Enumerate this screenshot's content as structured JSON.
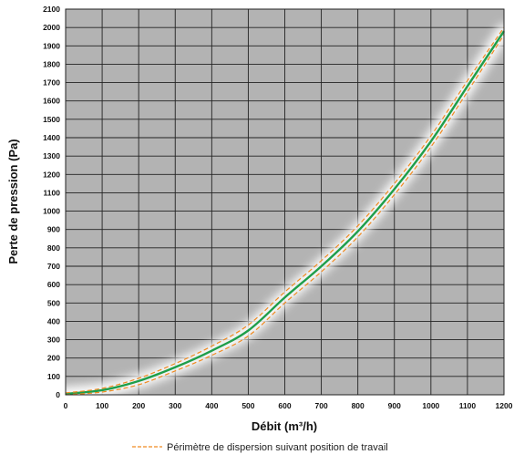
{
  "chart_data": {
    "type": "line",
    "xlabel": "Débit (m³/h)",
    "ylabel": "Perte de pression (Pa)",
    "xlim": [
      0,
      1200
    ],
    "ylim": [
      0,
      2100
    ],
    "x_ticks": [
      0,
      100,
      200,
      300,
      400,
      500,
      600,
      700,
      800,
      900,
      1000,
      1100,
      1200
    ],
    "y_ticks": [
      0,
      100,
      200,
      300,
      400,
      500,
      600,
      700,
      800,
      900,
      1000,
      1100,
      1200,
      1300,
      1400,
      1500,
      1600,
      1700,
      1800,
      1900,
      2000,
      2100
    ],
    "x_tick_labels": [
      "0",
      "100",
      "200",
      "300",
      "400",
      "500",
      "600",
      "700",
      "800",
      "900",
      "1000",
      "1100",
      "1200"
    ],
    "y_tick_labels": [
      "0",
      "100",
      "200",
      "300",
      "400",
      "500",
      "600",
      "700",
      "800",
      "900",
      "1000",
      "1100",
      "1200",
      "1300",
      "1400",
      "1500",
      "1600",
      "1700",
      "1800",
      "1900",
      "2000",
      "2100"
    ],
    "grid": true,
    "background_color": "#b3b3b3",
    "grid_color": "#222222",
    "legend_position": "bottom",
    "series": [
      {
        "color": "#1e9e4a",
        "style": "solid",
        "x": [
          0,
          100,
          200,
          300,
          400,
          500,
          600,
          700,
          800,
          900,
          1000,
          1100,
          1200
        ],
        "y": [
          5,
          25,
          75,
          150,
          240,
          350,
          530,
          700,
          890,
          1120,
          1380,
          1680,
          1980
        ]
      },
      {
        "name": "Périmètre de dispersion suivant position de travail",
        "color": "#f08a20",
        "style": "dashed",
        "x": [
          0,
          100,
          200,
          300,
          400,
          500,
          600,
          700,
          800,
          900,
          1000,
          1100,
          1200
        ],
        "y": [
          10,
          35,
          90,
          170,
          265,
          380,
          560,
          730,
          920,
          1150,
          1410,
          1710,
          2000
        ]
      },
      {
        "color": "#f08a20",
        "style": "dashed",
        "x": [
          0,
          100,
          200,
          300,
          400,
          500,
          600,
          700,
          800,
          900,
          1000,
          1100,
          1200
        ],
        "y": [
          0,
          15,
          55,
          130,
          215,
          320,
          500,
          670,
          860,
          1090,
          1350,
          1650,
          1960
        ]
      }
    ]
  }
}
